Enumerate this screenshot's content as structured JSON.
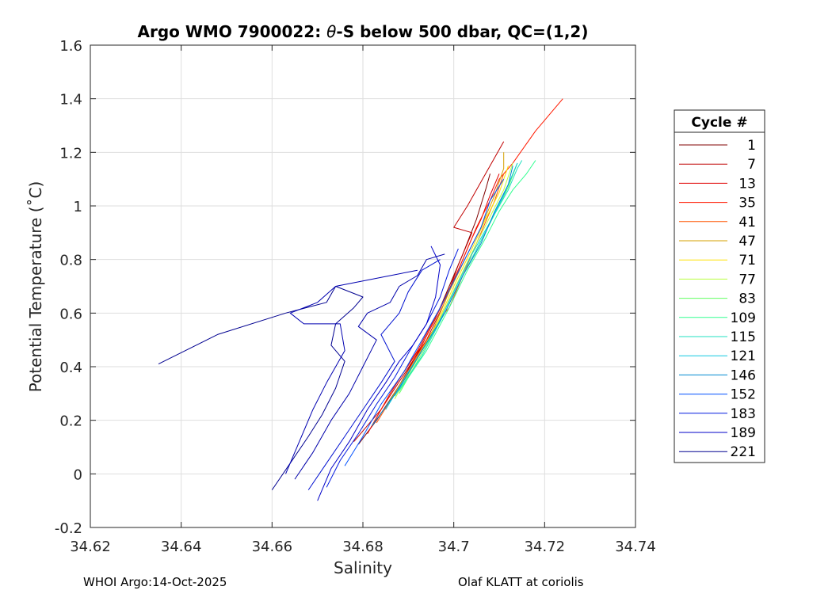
{
  "chart_data": {
    "type": "line",
    "title_prefix": "Argo WMO 7900022: ",
    "title_symbol": "θ",
    "title_suffix": "-S below 500 dbar,  QC=(1,2)",
    "xlabel": "Salinity",
    "ylabel": "Potential Temperature (˚C)",
    "xlim": [
      34.62,
      34.74
    ],
    "ylim": [
      -0.2,
      1.6
    ],
    "xticks": [
      "34.62",
      "34.64",
      "34.66",
      "34.68",
      "34.7",
      "34.72",
      "34.74"
    ],
    "yticks": [
      "-0.2",
      "0",
      "0.2",
      "0.4",
      "0.6",
      "0.8",
      "1",
      "1.2",
      "1.4",
      "1.6"
    ],
    "grid": true,
    "legend": {
      "title": "Cycle #",
      "placement": "outside-right",
      "entries": [
        {
          "label": "1",
          "color": "#800000"
        },
        {
          "label": "7",
          "color": "#c00000"
        },
        {
          "label": "13",
          "color": "#e00000"
        },
        {
          "label": "35",
          "color": "#ff1a00"
        },
        {
          "label": "41",
          "color": "#ff5500"
        },
        {
          "label": "47",
          "color": "#d4a000"
        },
        {
          "label": "71",
          "color": "#ffe000"
        },
        {
          "label": "77",
          "color": "#b8ff40"
        },
        {
          "label": "83",
          "color": "#60ff60"
        },
        {
          "label": "109",
          "color": "#30ff90"
        },
        {
          "label": "115",
          "color": "#20e0c0"
        },
        {
          "label": "121",
          "color": "#10c8e0"
        },
        {
          "label": "146",
          "color": "#0088d0"
        },
        {
          "label": "152",
          "color": "#0050ff"
        },
        {
          "label": "183",
          "color": "#0018e0"
        },
        {
          "label": "189",
          "color": "#0000c8"
        },
        {
          "label": "221",
          "color": "#000090"
        }
      ]
    },
    "series": [
      {
        "color": "#800000",
        "points": [
          [
            34.679,
            0.11
          ],
          [
            34.683,
            0.2
          ],
          [
            34.688,
            0.33
          ],
          [
            34.692,
            0.45
          ],
          [
            34.696,
            0.58
          ],
          [
            34.699,
            0.7
          ],
          [
            34.702,
            0.82
          ],
          [
            34.705,
            0.95
          ],
          [
            34.707,
            1.06
          ],
          [
            34.708,
            1.12
          ]
        ]
      },
      {
        "color": "#c00000",
        "points": [
          [
            34.678,
            0.12
          ],
          [
            34.684,
            0.24
          ],
          [
            34.689,
            0.37
          ],
          [
            34.694,
            0.5
          ],
          [
            34.698,
            0.64
          ],
          [
            34.701,
            0.78
          ],
          [
            34.704,
            0.9
          ],
          [
            34.7,
            0.92
          ],
          [
            34.703,
            1.0
          ],
          [
            34.707,
            1.12
          ],
          [
            34.711,
            1.24
          ]
        ]
      },
      {
        "color": "#e00000",
        "points": [
          [
            34.681,
            0.15
          ],
          [
            34.686,
            0.3
          ],
          [
            34.692,
            0.46
          ],
          [
            34.697,
            0.62
          ],
          [
            34.701,
            0.76
          ],
          [
            34.704,
            0.88
          ],
          [
            34.706,
            0.95
          ],
          [
            34.708,
            1.04
          ],
          [
            34.71,
            1.12
          ]
        ]
      },
      {
        "color": "#ff1a00",
        "points": [
          [
            34.682,
            0.18
          ],
          [
            34.687,
            0.33
          ],
          [
            34.693,
            0.48
          ],
          [
            34.698,
            0.65
          ],
          [
            34.702,
            0.8
          ],
          [
            34.705,
            0.92
          ],
          [
            34.708,
            1.02
          ],
          [
            34.71,
            1.1
          ],
          [
            34.713,
            1.16
          ],
          [
            34.718,
            1.28
          ],
          [
            34.724,
            1.4
          ]
        ]
      },
      {
        "color": "#ff5500",
        "points": [
          [
            34.683,
            0.19
          ],
          [
            34.688,
            0.33
          ],
          [
            34.693,
            0.47
          ],
          [
            34.697,
            0.58
          ],
          [
            34.699,
            0.62
          ],
          [
            34.703,
            0.78
          ],
          [
            34.706,
            0.9
          ],
          [
            34.709,
            1.02
          ],
          [
            34.711,
            1.12
          ]
        ]
      },
      {
        "color": "#d4a000",
        "points": [
          [
            34.685,
            0.25
          ],
          [
            34.69,
            0.38
          ],
          [
            34.695,
            0.52
          ],
          [
            34.699,
            0.68
          ],
          [
            34.703,
            0.82
          ],
          [
            34.706,
            0.92
          ],
          [
            34.709,
            1.04
          ],
          [
            34.711,
            1.14
          ],
          [
            34.711,
            1.2
          ]
        ]
      },
      {
        "color": "#ffe000",
        "points": [
          [
            34.686,
            0.27
          ],
          [
            34.691,
            0.4
          ],
          [
            34.696,
            0.55
          ],
          [
            34.7,
            0.7
          ],
          [
            34.704,
            0.84
          ],
          [
            34.707,
            0.95
          ],
          [
            34.71,
            1.05
          ],
          [
            34.712,
            1.15
          ]
        ]
      },
      {
        "color": "#b8ff40",
        "points": [
          [
            34.687,
            0.28
          ],
          [
            34.692,
            0.43
          ],
          [
            34.697,
            0.58
          ],
          [
            34.701,
            0.72
          ],
          [
            34.705,
            0.86
          ],
          [
            34.708,
            0.96
          ],
          [
            34.711,
            1.06
          ],
          [
            34.713,
            1.16
          ]
        ]
      },
      {
        "color": "#60ff60",
        "points": [
          [
            34.688,
            0.3
          ],
          [
            34.693,
            0.45
          ],
          [
            34.698,
            0.6
          ],
          [
            34.702,
            0.74
          ],
          [
            34.706,
            0.87
          ],
          [
            34.709,
            0.97
          ],
          [
            34.712,
            1.07
          ],
          [
            34.714,
            1.16
          ]
        ]
      },
      {
        "color": "#30ff90",
        "points": [
          [
            34.688,
            0.31
          ],
          [
            34.694,
            0.46
          ],
          [
            34.699,
            0.62
          ],
          [
            34.703,
            0.76
          ],
          [
            34.707,
            0.88
          ],
          [
            34.71,
            0.98
          ],
          [
            34.713,
            1.06
          ],
          [
            34.716,
            1.12
          ],
          [
            34.718,
            1.17
          ]
        ]
      },
      {
        "color": "#20e0c0",
        "points": [
          [
            34.687,
            0.29
          ],
          [
            34.693,
            0.44
          ],
          [
            34.698,
            0.6
          ],
          [
            34.702,
            0.74
          ],
          [
            34.706,
            0.87
          ],
          [
            34.709,
            0.97
          ],
          [
            34.712,
            1.06
          ],
          [
            34.714,
            1.14
          ],
          [
            34.715,
            1.17
          ]
        ]
      },
      {
        "color": "#10c8e0",
        "points": [
          [
            34.685,
            0.24
          ],
          [
            34.69,
            0.38
          ],
          [
            34.696,
            0.54
          ],
          [
            34.7,
            0.68
          ],
          [
            34.704,
            0.82
          ],
          [
            34.708,
            0.94
          ],
          [
            34.711,
            1.04
          ],
          [
            34.713,
            1.12
          ],
          [
            34.714,
            1.16
          ]
        ]
      },
      {
        "color": "#0088d0",
        "points": [
          [
            34.682,
            0.18
          ],
          [
            34.688,
            0.32
          ],
          [
            34.693,
            0.46
          ],
          [
            34.698,
            0.6
          ],
          [
            34.702,
            0.74
          ],
          [
            34.706,
            0.86
          ],
          [
            34.709,
            0.98
          ],
          [
            34.712,
            1.08
          ],
          [
            34.713,
            1.15
          ]
        ]
      },
      {
        "color": "#0050ff",
        "points": [
          [
            34.676,
            0.03
          ],
          [
            34.68,
            0.14
          ],
          [
            34.684,
            0.26
          ],
          [
            34.689,
            0.38
          ],
          [
            34.693,
            0.5
          ],
          [
            34.697,
            0.62
          ],
          [
            34.7,
            0.72
          ],
          [
            34.703,
            0.82
          ],
          [
            34.706,
            0.92
          ],
          [
            34.708,
            1.02
          ],
          [
            34.711,
            1.1
          ]
        ]
      },
      {
        "color": "#0018e0",
        "points": [
          [
            34.672,
            -0.05
          ],
          [
            34.675,
            0.05
          ],
          [
            34.679,
            0.15
          ],
          [
            34.683,
            0.26
          ],
          [
            34.687,
            0.36
          ],
          [
            34.691,
            0.48
          ],
          [
            34.694,
            0.56
          ],
          [
            34.697,
            0.66
          ],
          [
            34.699,
            0.76
          ],
          [
            34.701,
            0.84
          ]
        ]
      },
      {
        "color": "#0000c8",
        "points": [
          [
            34.67,
            -0.1
          ],
          [
            34.673,
            0.02
          ],
          [
            34.677,
            0.12
          ],
          [
            34.681,
            0.24
          ],
          [
            34.685,
            0.34
          ],
          [
            34.688,
            0.42
          ],
          [
            34.691,
            0.48
          ],
          [
            34.694,
            0.56
          ],
          [
            34.696,
            0.66
          ],
          [
            34.697,
            0.78
          ],
          [
            34.695,
            0.85
          ]
        ]
      },
      {
        "color": "#000090",
        "points": [
          [
            34.66,
            -0.06
          ],
          [
            34.664,
            0.04
          ],
          [
            34.668,
            0.14
          ],
          [
            34.671,
            0.22
          ],
          [
            34.674,
            0.32
          ],
          [
            34.676,
            0.42
          ],
          [
            34.673,
            0.48
          ],
          [
            34.674,
            0.56
          ],
          [
            34.678,
            0.62
          ],
          [
            34.68,
            0.66
          ],
          [
            34.674,
            0.7
          ],
          [
            34.672,
            0.64
          ],
          [
            34.663,
            0.6
          ],
          [
            34.648,
            0.52
          ],
          [
            34.635,
            0.41
          ]
        ]
      },
      {
        "color": "#0000aa",
        "points": [
          [
            34.665,
            -0.02
          ],
          [
            34.669,
            0.08
          ],
          [
            34.673,
            0.2
          ],
          [
            34.677,
            0.3
          ],
          [
            34.68,
            0.4
          ],
          [
            34.683,
            0.5
          ],
          [
            34.679,
            0.55
          ],
          [
            34.681,
            0.6
          ],
          [
            34.686,
            0.64
          ],
          [
            34.688,
            0.7
          ],
          [
            34.692,
            0.74
          ],
          [
            34.694,
            0.8
          ],
          [
            34.698,
            0.82
          ]
        ]
      },
      {
        "color": "#0010d0",
        "points": [
          [
            34.668,
            -0.06
          ],
          [
            34.672,
            0.04
          ],
          [
            34.676,
            0.14
          ],
          [
            34.68,
            0.24
          ],
          [
            34.684,
            0.34
          ],
          [
            34.687,
            0.42
          ],
          [
            34.684,
            0.52
          ],
          [
            34.688,
            0.6
          ],
          [
            34.69,
            0.68
          ],
          [
            34.693,
            0.76
          ],
          [
            34.697,
            0.8
          ]
        ]
      },
      {
        "color": "#0000b0",
        "points": [
          [
            34.663,
            0.0
          ],
          [
            34.666,
            0.12
          ],
          [
            34.669,
            0.24
          ],
          [
            34.672,
            0.34
          ],
          [
            34.676,
            0.46
          ],
          [
            34.675,
            0.56
          ],
          [
            34.667,
            0.56
          ],
          [
            34.664,
            0.6
          ],
          [
            34.67,
            0.64
          ],
          [
            34.674,
            0.7
          ],
          [
            34.68,
            0.72
          ],
          [
            34.686,
            0.74
          ],
          [
            34.692,
            0.76
          ]
        ]
      }
    ]
  },
  "footer": {
    "left": "WHOI Argo:14-Oct-2025",
    "right": "Olaf KLATT at coriolis"
  }
}
